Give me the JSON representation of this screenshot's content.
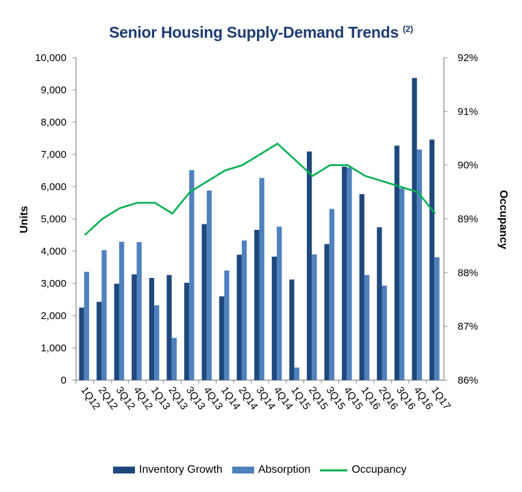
{
  "chart_data": {
    "type": "bar",
    "title": "Senior Housing Supply-Demand Trends",
    "title_superscript": "(2)",
    "categories": [
      "1Q12",
      "2Q12",
      "3Q12",
      "4Q12",
      "1Q13",
      "2Q13",
      "3Q13",
      "4Q13",
      "1Q14",
      "2Q14",
      "3Q14",
      "4Q14",
      "1Q15",
      "2Q15",
      "3Q15",
      "4Q15",
      "1Q16",
      "2Q16",
      "3Q16",
      "4Q16",
      "1Q17"
    ],
    "series": [
      {
        "name": "Inventory Growth",
        "type": "bar",
        "axis": "left",
        "color": "#1f497d",
        "values": [
          2250,
          2430,
          2990,
          3280,
          3170,
          3260,
          3020,
          4840,
          2600,
          3890,
          4660,
          3830,
          3120,
          7090,
          4220,
          6620,
          5770,
          4740,
          7270,
          9370,
          7460
        ]
      },
      {
        "name": "Absorption",
        "type": "bar",
        "axis": "left",
        "color": "#4f81bd",
        "values": [
          3360,
          4030,
          4290,
          4280,
          2320,
          1310,
          6510,
          5880,
          3400,
          4330,
          6270,
          4760,
          390,
          3900,
          5310,
          6590,
          3260,
          2930,
          5950,
          7150,
          3810
        ]
      },
      {
        "name": "Occupancy",
        "type": "line",
        "axis": "right",
        "color": "#00b050",
        "values": [
          88.7,
          89.0,
          89.2,
          89.3,
          89.3,
          89.1,
          89.5,
          89.7,
          89.9,
          90.0,
          90.2,
          90.4,
          90.1,
          89.8,
          90.0,
          90.0,
          89.8,
          89.7,
          89.6,
          89.5,
          89.1
        ]
      }
    ],
    "ylabel": "Units",
    "ylim": [
      0,
      10000
    ],
    "yticks": [
      "0",
      "1,000",
      "2,000",
      "3,000",
      "4,000",
      "5,000",
      "6,000",
      "7,000",
      "8,000",
      "9,000",
      "10,000"
    ],
    "y2label": "Occupancy",
    "y2lim": [
      86,
      92
    ],
    "y2ticks": [
      "86%",
      "87%",
      "88%",
      "89%",
      "90%",
      "91%",
      "92%"
    ],
    "legend": "bottom",
    "grid": false
  }
}
